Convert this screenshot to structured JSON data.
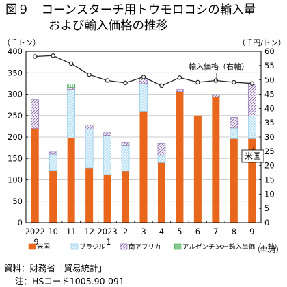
{
  "title_line1": "図９　コーンスターチ用トウモロコシの輸入量",
  "title_line2": "および輸入価格の推移",
  "source_line": "資料：財務省「貿易統計」",
  "note_line": "注：HSコード1005.90-091",
  "colors": {
    "us": "#E8671C",
    "brazil": "#CFE8F6",
    "south_africa": "#8B6BAE",
    "argentina": "#39A847",
    "price_line": "#222222"
  },
  "chart_data": {
    "type": "bar",
    "stacked": true,
    "y_left": {
      "unit_label": "（千トン）",
      "ylim": [
        0,
        400
      ],
      "ticks": [
        0,
        50,
        100,
        150,
        200,
        250,
        300,
        350,
        400
      ]
    },
    "y_right": {
      "unit_label": "（千円/トン）",
      "ylim": [
        0,
        60
      ],
      "ticks": [
        0,
        5,
        10,
        15,
        20,
        25,
        30,
        35,
        40,
        45,
        50,
        55,
        60
      ]
    },
    "x_unit_label": "（年.月）",
    "categories": [
      [
        "2022",
        ".9"
      ],
      [
        "10",
        ""
      ],
      [
        "11",
        ""
      ],
      [
        "12",
        ""
      ],
      [
        "2023",
        ".1"
      ],
      [
        "2",
        ""
      ],
      [
        "3",
        ""
      ],
      [
        "4",
        ""
      ],
      [
        "5",
        ""
      ],
      [
        "6",
        ""
      ],
      [
        "7",
        ""
      ],
      [
        "8",
        ""
      ],
      [
        "9",
        ""
      ]
    ],
    "series": [
      {
        "name": "米国",
        "pattern": "solid",
        "values": [
          220,
          122,
          198,
          128,
          112,
          120,
          260,
          140,
          306,
          250,
          294,
          196,
          196
        ]
      },
      {
        "name": "ブラジル",
        "pattern": "dots",
        "values": [
          0,
          38,
          113,
          90,
          92,
          60,
          65,
          17,
          0,
          0,
          0,
          25,
          53
        ]
      },
      {
        "name": "南アフリカ",
        "pattern": "diagonal",
        "values": [
          67,
          5,
          5,
          10,
          6,
          7,
          10,
          28,
          5,
          0,
          5,
          25,
          75
        ]
      },
      {
        "name": "アルゼンチン",
        "pattern": "vertical",
        "values": [
          0,
          0,
          8,
          0,
          0,
          0,
          0,
          0,
          0,
          0,
          0,
          0,
          0
        ]
      }
    ],
    "line_series": {
      "name": "輸入単価",
      "axis": "right",
      "values": [
        58.2,
        58.5,
        55.7,
        51.8,
        49.8,
        49.0,
        51.0,
        48.0,
        50.8,
        49.2,
        49.8,
        49.2,
        48.8
      ]
    },
    "annotations": [
      {
        "text": "輸入価格（右軸）",
        "target": "line"
      },
      {
        "text": "米国",
        "target": "series-0-last-bar"
      }
    ]
  }
}
